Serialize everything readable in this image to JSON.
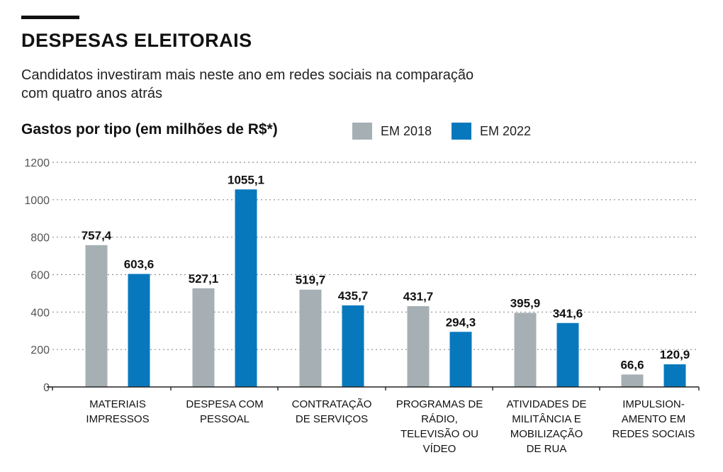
{
  "header": {
    "title": "DESPESAS ELEITORAIS",
    "subtitle": "Candidatos investiram mais neste ano em redes sociais na comparação com quatro anos atrás",
    "chart_heading": "Gastos por tipo (em milhões de R$*)"
  },
  "colors": {
    "series_2018": "#a6b0b4",
    "series_2022": "#0878bd",
    "grid": "#8f8f8f",
    "axis": "#222222"
  },
  "chart_data": {
    "type": "bar",
    "title": "Gastos por tipo (em milhões de R$*)",
    "xlabel": "",
    "ylabel": "",
    "ylim": [
      0,
      1200
    ],
    "yticks": [
      0,
      200,
      400,
      600,
      800,
      1000,
      1200
    ],
    "ytick_labels": [
      "0",
      "200",
      "400",
      "600",
      "800",
      "1000",
      "1200"
    ],
    "grid": true,
    "legend_position": "top",
    "categories": [
      [
        "MATERIAIS",
        "IMPRESSOS"
      ],
      [
        "DESPESA COM",
        "PESSOAL"
      ],
      [
        "CONTRATAÇÃO",
        "DE SERVIÇOS"
      ],
      [
        "PROGRAMAS DE",
        "RÁDIO,",
        "TELEVISÃO OU",
        "VÍDEO"
      ],
      [
        "ATIVIDADES DE",
        "MILITÂNCIA E",
        "MOBILIZAÇÃO",
        "DE RUA"
      ],
      [
        "IMPULSION-",
        "AMENTO EM",
        "REDES SOCIAIS"
      ]
    ],
    "series": [
      {
        "name": "EM 2018",
        "values": [
          757.4,
          527.1,
          519.7,
          431.7,
          395.9,
          66.6
        ],
        "labels": [
          "757,4",
          "527,1",
          "519,7",
          "431,7",
          "395,9",
          "66,6"
        ]
      },
      {
        "name": "EM 2022",
        "values": [
          603.6,
          1055.1,
          435.7,
          294.3,
          341.6,
          120.9
        ],
        "labels": [
          "603,6",
          "1055,1",
          "435,7",
          "294,3",
          "341,6",
          "120,9"
        ]
      }
    ]
  }
}
